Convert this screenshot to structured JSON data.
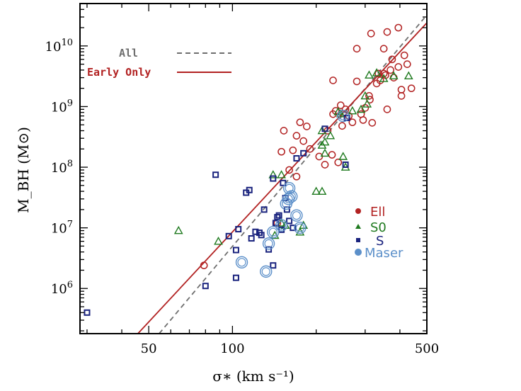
{
  "chart_data": {
    "type": "scatter",
    "xlabel": "σ∗ (km s⁻¹)",
    "ylabel": "M_BH (M⊙)",
    "xscale": "log",
    "yscale": "log",
    "xlim": [
      28.3,
      500
    ],
    "ylim": [
      180000,
      50000000000
    ],
    "xticks": [
      {
        "value": 50,
        "label": "50"
      },
      {
        "value": 100,
        "label": "100"
      },
      {
        "value": 500,
        "label": "500"
      }
    ],
    "yticks": [
      {
        "value": 1000000,
        "base": "10",
        "exp": "6"
      },
      {
        "value": 10000000,
        "base": "10",
        "exp": "7"
      },
      {
        "value": 100000000,
        "base": "10",
        "exp": "8"
      },
      {
        "value": 1000000000,
        "base": "10",
        "exp": "9"
      },
      {
        "value": 10000000000,
        "base": "10",
        "exp": "10"
      }
    ],
    "fits": [
      {
        "name": "All",
        "style": "dashed",
        "color": "#6e6e6e",
        "points": [
          [
            54.5,
            180000
          ],
          [
            490,
            29000000000
          ]
        ]
      },
      {
        "name": "Early Only",
        "style": "solid",
        "color": "#b22222",
        "points": [
          [
            45.7,
            180000
          ],
          [
            500,
            24000000000
          ]
        ]
      }
    ],
    "series": [
      {
        "name": "Ell",
        "marker": "circle",
        "color": "#b22222",
        "points": [
          [
            79,
            2400000
          ],
          [
            145,
            12000000
          ],
          [
            160,
            90000000
          ],
          [
            150,
            180000000
          ],
          [
            153,
            400000000
          ],
          [
            170,
            330000000
          ],
          [
            180,
            270000000
          ],
          [
            175,
            550000000
          ],
          [
            185,
            470000000
          ],
          [
            190,
            200000000
          ],
          [
            205,
            150000000
          ],
          [
            215,
            110000000
          ],
          [
            228,
            160000000
          ],
          [
            240,
            120000000
          ],
          [
            220,
            400000000
          ],
          [
            230,
            750000000
          ],
          [
            235,
            850000000
          ],
          [
            245,
            1050000000
          ],
          [
            255,
            900000000
          ],
          [
            248,
            480000000
          ],
          [
            262,
            700000000
          ],
          [
            270,
            550000000
          ],
          [
            280,
            2600000000
          ],
          [
            290,
            750000000
          ],
          [
            295,
            600000000
          ],
          [
            300,
            950000000
          ],
          [
            310,
            1500000000
          ],
          [
            312,
            1300000000
          ],
          [
            318,
            540000000
          ],
          [
            330,
            2400000000
          ],
          [
            335,
            3500000000
          ],
          [
            340,
            2700000000
          ],
          [
            350,
            3500000000
          ],
          [
            355,
            3300000000
          ],
          [
            360,
            900000000
          ],
          [
            370,
            4000000000
          ],
          [
            375,
            6000000000
          ],
          [
            380,
            3000000000
          ],
          [
            395,
            4500000000
          ],
          [
            405,
            1500000000
          ],
          [
            415,
            7000000000
          ],
          [
            425,
            5000000000
          ],
          [
            405,
            1900000000
          ],
          [
            280,
            9000000000
          ],
          [
            315,
            16000000000
          ],
          [
            350,
            9000000000
          ],
          [
            360,
            17000000000
          ],
          [
            395,
            20000000000
          ],
          [
            440,
            2000000000
          ],
          [
            230,
            2700000000
          ],
          [
            165,
            190000000
          ],
          [
            170,
            70000000
          ]
        ]
      },
      {
        "name": "S0",
        "marker": "triangle",
        "color": "#1f7a1f",
        "points": [
          [
            64,
            9000000
          ],
          [
            89,
            6000000
          ],
          [
            142,
            7500000
          ],
          [
            140,
            75000000
          ],
          [
            150,
            75000000
          ],
          [
            150,
            12000000
          ],
          [
            155,
            11000000
          ],
          [
            175,
            8500000
          ],
          [
            180,
            11000000
          ],
          [
            200,
            40000000
          ],
          [
            210,
            40000000
          ],
          [
            210,
            230000000
          ],
          [
            215,
            170000000
          ],
          [
            215,
            260000000
          ],
          [
            225,
            330000000
          ],
          [
            210,
            400000000
          ],
          [
            240,
            820000000
          ],
          [
            245,
            760000000
          ],
          [
            250,
            150000000
          ],
          [
            255,
            100000000
          ],
          [
            270,
            850000000
          ],
          [
            290,
            900000000
          ],
          [
            300,
            1500000000
          ],
          [
            305,
            1100000000
          ],
          [
            310,
            3300000000
          ],
          [
            330,
            3600000000
          ],
          [
            350,
            2900000000
          ],
          [
            380,
            3200000000
          ],
          [
            430,
            3200000000
          ]
        ]
      },
      {
        "name": "S",
        "marker": "square",
        "color": "#1a237e",
        "points": [
          [
            30,
            400000
          ],
          [
            80,
            1100000
          ],
          [
            87,
            75000000
          ],
          [
            97,
            7300000
          ],
          [
            103,
            1500000
          ],
          [
            103,
            4300000
          ],
          [
            105,
            9500000
          ],
          [
            112,
            38000000
          ],
          [
            115,
            42000000
          ],
          [
            117,
            6700000
          ],
          [
            121,
            8600000
          ],
          [
            125,
            8300000
          ],
          [
            127,
            7600000
          ],
          [
            130,
            20000000
          ],
          [
            135,
            4400000
          ],
          [
            140,
            2400000
          ],
          [
            140,
            65000000
          ],
          [
            143,
            12000000
          ],
          [
            145,
            15000000
          ],
          [
            147,
            16000000
          ],
          [
            150,
            9300000
          ],
          [
            152,
            55000000
          ],
          [
            155,
            31000000
          ],
          [
            157,
            20000000
          ],
          [
            160,
            13000000
          ],
          [
            165,
            10000000
          ],
          [
            170,
            140000000
          ],
          [
            180,
            170000000
          ],
          [
            215,
            430000000
          ],
          [
            255,
            110000000
          ],
          [
            258,
            650000000
          ]
        ]
      },
      {
        "name": "Maser",
        "marker": "ring",
        "color": "#5b8fc9",
        "points": [
          [
            108,
            2700000
          ],
          [
            132,
            1900000
          ],
          [
            135,
            5500000
          ],
          [
            140,
            8500000
          ],
          [
            150,
            11000000
          ],
          [
            156,
            25000000
          ],
          [
            159,
            30000000
          ],
          [
            160,
            45000000
          ],
          [
            163,
            33000000
          ],
          [
            170,
            16000000
          ],
          [
            175,
            10000000
          ],
          [
            250,
            700000000
          ]
        ]
      }
    ],
    "legend": {
      "lines": [
        {
          "label": "All",
          "color": "#6e6e6e",
          "style": "dashed"
        },
        {
          "label": "Early Only",
          "color": "#b22222",
          "style": "solid"
        }
      ],
      "points": [
        {
          "label": "Ell",
          "color": "#b22222",
          "marker": "circle"
        },
        {
          "label": "S0",
          "color": "#1f7a1f",
          "marker": "triangle"
        },
        {
          "label": "S",
          "color": "#1a237e",
          "marker": "square"
        },
        {
          "label": "Maser",
          "color": "#5b8fc9",
          "marker": "ring"
        }
      ]
    }
  }
}
